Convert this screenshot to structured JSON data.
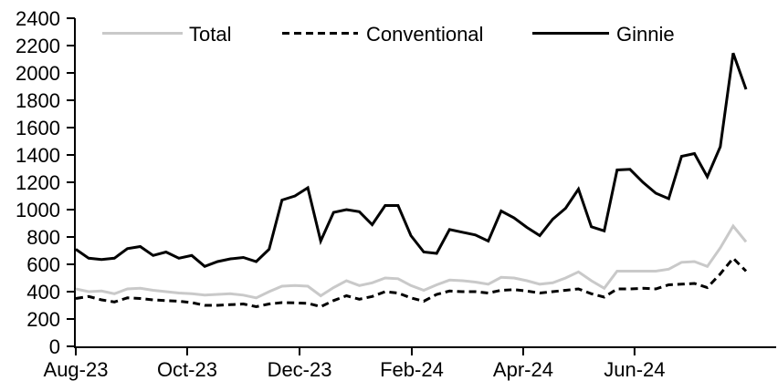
{
  "chart_data": {
    "type": "line",
    "title": "",
    "xlabel": "",
    "ylabel": "",
    "grid": false,
    "legend_position": "top",
    "x_axis": {
      "unit": "weeks",
      "n_points": 53,
      "tick_labels": [
        "Aug-23",
        "Oct-23",
        "Dec-23",
        "Feb-24",
        "Apr-24",
        "Jun-24"
      ],
      "tick_week_positions": [
        0,
        8.64,
        17.36,
        26.07,
        34.71,
        43.35
      ]
    },
    "y_axis": {
      "min": 0,
      "max": 2400,
      "step": 200,
      "tick_labels": [
        "0",
        "200",
        "400",
        "600",
        "800",
        "1000",
        "1200",
        "1400",
        "1600",
        "1800",
        "2000",
        "2200",
        "2400"
      ]
    },
    "series": [
      {
        "name": "Total",
        "color": "#c9c9c9",
        "style": "solid",
        "values": [
          420,
          400,
          405,
          385,
          420,
          425,
          410,
          400,
          390,
          385,
          375,
          380,
          385,
          375,
          355,
          400,
          440,
          445,
          440,
          370,
          430,
          480,
          445,
          465,
          500,
          495,
          445,
          410,
          450,
          485,
          480,
          470,
          455,
          505,
          500,
          480,
          455,
          465,
          500,
          545,
          480,
          425,
          550,
          550,
          550,
          550,
          565,
          615,
          620,
          585,
          720,
          880,
          765
        ]
      },
      {
        "name": "Conventional",
        "color": "#000000",
        "style": "dashed",
        "values": [
          350,
          365,
          340,
          325,
          355,
          350,
          340,
          335,
          330,
          320,
          300,
          300,
          305,
          310,
          290,
          310,
          320,
          318,
          315,
          290,
          335,
          370,
          345,
          365,
          400,
          390,
          355,
          330,
          380,
          405,
          400,
          400,
          390,
          410,
          415,
          405,
          390,
          400,
          410,
          420,
          385,
          360,
          420,
          420,
          425,
          420,
          450,
          455,
          460,
          430,
          530,
          645,
          550
        ]
      },
      {
        "name": "Ginnie",
        "color": "#000000",
        "style": "solid",
        "values": [
          710,
          645,
          635,
          645,
          715,
          730,
          665,
          690,
          645,
          665,
          585,
          620,
          640,
          650,
          620,
          710,
          1070,
          1100,
          1160,
          770,
          980,
          1000,
          985,
          890,
          1030,
          1030,
          810,
          690,
          680,
          855,
          835,
          815,
          770,
          990,
          940,
          870,
          810,
          930,
          1010,
          1150,
          875,
          845,
          1290,
          1295,
          1200,
          1120,
          1080,
          1390,
          1410,
          1240,
          1460,
          2145,
          1880
        ]
      }
    ]
  }
}
